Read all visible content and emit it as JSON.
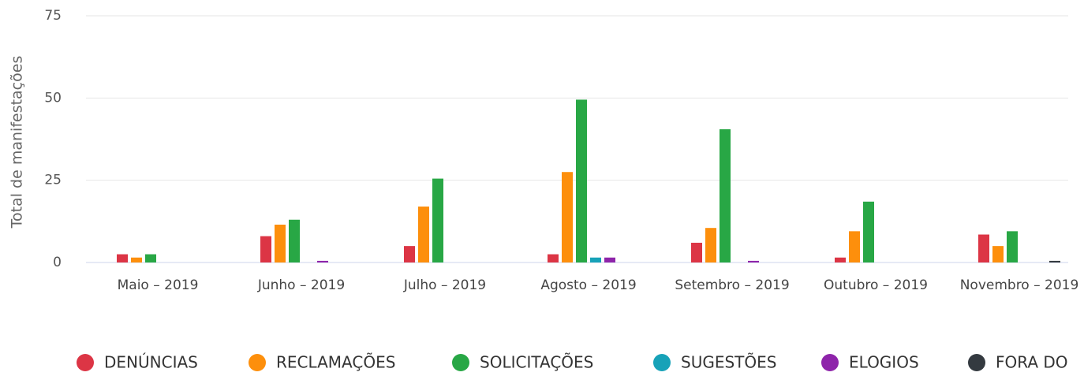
{
  "chart_data": {
    "type": "bar",
    "y_axis_label": "Total de manifestações",
    "categories": [
      "Maio – 2019",
      "Junho – 2019",
      "Julho – 2019",
      "Agosto – 2019",
      "Setembro – 2019",
      "Outubro – 2019",
      "Novembro – 2019"
    ],
    "series": [
      {
        "name": "DENÚNCIAS",
        "color": "#dc3545",
        "values": [
          2.5,
          8,
          5,
          2.5,
          6,
          1.5,
          8.5
        ]
      },
      {
        "name": "RECLAMAÇÕES",
        "color": "#fd8f0c",
        "values": [
          1.5,
          11.5,
          17,
          27.5,
          10.5,
          9.5,
          5
        ]
      },
      {
        "name": "SOLICITAÇÕES",
        "color": "#28a745",
        "values": [
          2.5,
          13,
          25.5,
          49.5,
          40.5,
          18.5,
          9.5
        ]
      },
      {
        "name": "SUGESTÕES",
        "color": "#17a2b8",
        "values": [
          null,
          null,
          null,
          1.5,
          null,
          null,
          null
        ]
      },
      {
        "name": "ELOGIOS",
        "color": "#8e24aa",
        "values": [
          null,
          0.5,
          null,
          1.5,
          0.5,
          null,
          null
        ]
      },
      {
        "name": "FORA DO",
        "color": "#343a40",
        "values": [
          null,
          null,
          null,
          null,
          null,
          null,
          0.5
        ]
      }
    ],
    "ylim": [
      0,
      75
    ],
    "yticks": [
      0,
      25,
      50,
      75
    ],
    "grid": true,
    "legend": "bottom"
  }
}
